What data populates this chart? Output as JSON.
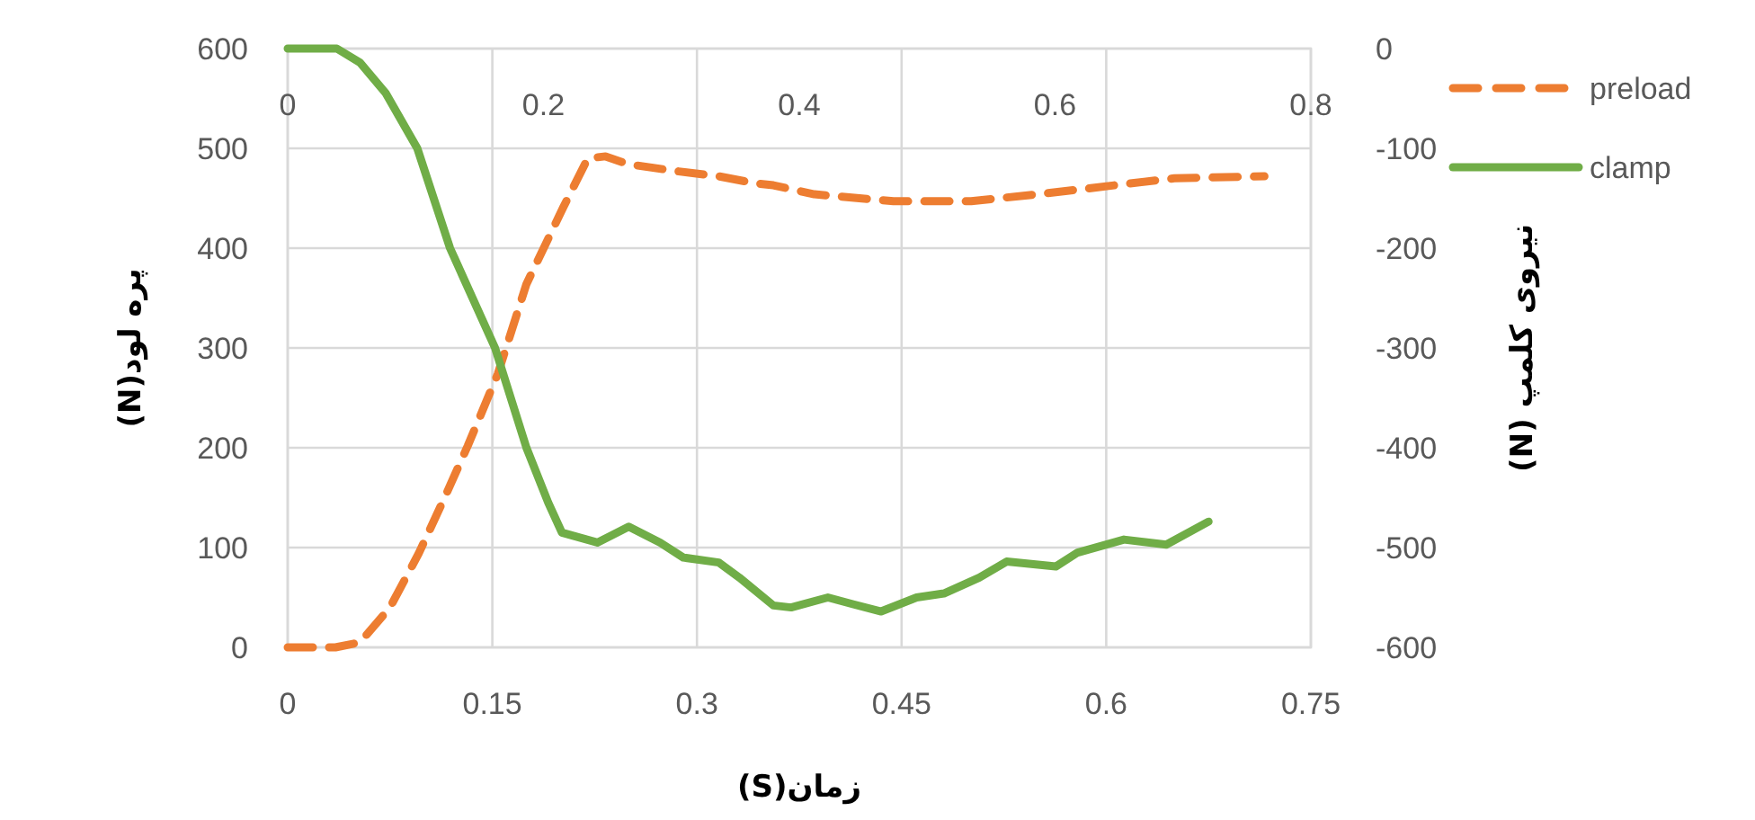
{
  "chart_data": {
    "type": "line",
    "xlabel": "زمان(S)",
    "ylabel": "پره لود(N)",
    "y2label": "نیروی کلمپ (N)",
    "xlim": [
      0,
      0.75
    ],
    "xticks": [
      0,
      0.15,
      0.3,
      0.45,
      0.6,
      0.75
    ],
    "x2lim": [
      0,
      0.8
    ],
    "x2ticks": [
      0,
      0.2,
      0.4,
      0.6,
      0.8
    ],
    "ylim": [
      0,
      600
    ],
    "yticks": [
      0,
      100,
      200,
      300,
      400,
      500,
      600
    ],
    "y2lim": [
      -600,
      0
    ],
    "y2ticks": [
      -600,
      -500,
      -400,
      -300,
      -200,
      -100,
      0
    ],
    "grid": true,
    "legend": "right",
    "series": [
      {
        "name": "preload",
        "color": "#ed7d31",
        "line_style": "dashed",
        "x": [
          0,
          0.035,
          0.053,
          0.075,
          0.096,
          0.115,
          0.132,
          0.154,
          0.175,
          0.202,
          0.22,
          0.233,
          0.25,
          0.286,
          0.316,
          0.343,
          0.356,
          0.386,
          0.444,
          0.501,
          0.563,
          0.606,
          0.65,
          0.716
        ],
        "values": [
          0,
          0,
          5,
          40,
          94,
          150,
          202,
          274,
          364,
          441,
          490,
          492,
          484,
          477,
          472,
          465,
          463,
          454,
          447,
          447,
          456,
          463,
          470,
          472
        ]
      },
      {
        "name": "clamp",
        "color": "#70ad47",
        "line_style": "solid",
        "axis": "y2",
        "x": [
          0,
          0.036,
          0.053,
          0.072,
          0.095,
          0.119,
          0.152,
          0.175,
          0.191,
          0.201,
          0.227,
          0.25,
          0.273,
          0.29,
          0.316,
          0.331,
          0.356,
          0.369,
          0.396,
          0.415,
          0.435,
          0.461,
          0.481,
          0.507,
          0.527,
          0.563,
          0.579,
          0.613,
          0.644,
          0.675
        ],
        "values": [
          0,
          0,
          -14,
          -45,
          -100,
          -200,
          -300,
          -400,
          -455,
          -485,
          -495,
          -479,
          -495,
          -510,
          -515,
          -530,
          -558,
          -560,
          -550,
          -557,
          -564,
          -550,
          -546,
          -530,
          -514,
          -519,
          -505,
          -492,
          -497,
          -474
        ]
      }
    ]
  }
}
